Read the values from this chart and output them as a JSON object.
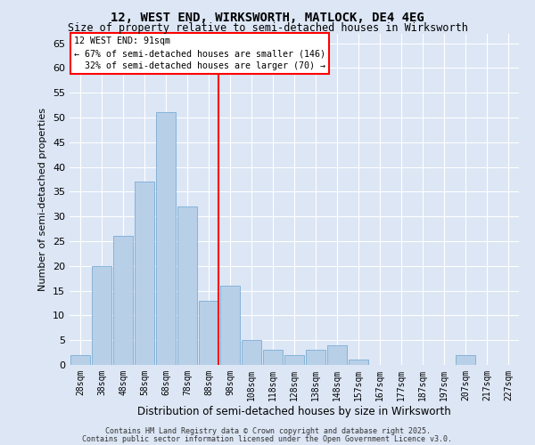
{
  "title1": "12, WEST END, WIRKSWORTH, MATLOCK, DE4 4EG",
  "title2": "Size of property relative to semi-detached houses in Wirksworth",
  "xlabel": "Distribution of semi-detached houses by size in Wirksworth",
  "ylabel": "Number of semi-detached properties",
  "bar_color": "#b8cfe8",
  "bar_edge_color": "#7aadd4",
  "bg_color": "#dce6f5",
  "grid_color": "#ffffff",
  "categories": [
    "28sqm",
    "38sqm",
    "48sqm",
    "58sqm",
    "68sqm",
    "78sqm",
    "88sqm",
    "98sqm",
    "108sqm",
    "118sqm",
    "128sqm",
    "138sqm",
    "148sqm",
    "157sqm",
    "167sqm",
    "177sqm",
    "187sqm",
    "197sqm",
    "207sqm",
    "217sqm",
    "227sqm"
  ],
  "values": [
    2,
    20,
    26,
    37,
    51,
    32,
    13,
    16,
    5,
    3,
    2,
    3,
    4,
    1,
    0,
    0,
    0,
    0,
    2,
    0,
    0
  ],
  "property_label": "12 WEST END: 91sqm",
  "pct_smaller": 67,
  "count_smaller": 146,
  "pct_larger": 32,
  "count_larger": 70,
  "ylim": [
    0,
    67
  ],
  "yticks": [
    0,
    5,
    10,
    15,
    20,
    25,
    30,
    35,
    40,
    45,
    50,
    55,
    60,
    65
  ],
  "footer1": "Contains HM Land Registry data © Crown copyright and database right 2025.",
  "footer2": "Contains public sector information licensed under the Open Government Licence v3.0."
}
